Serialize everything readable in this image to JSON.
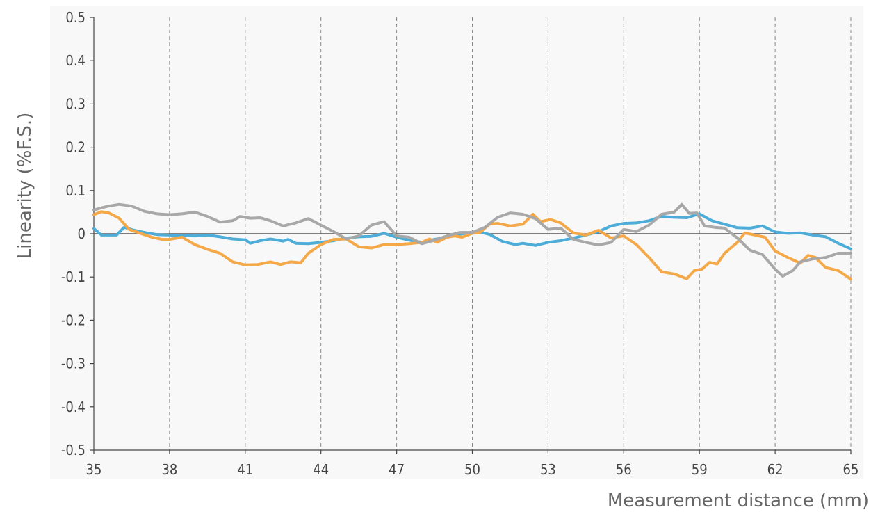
{
  "chart_data": {
    "type": "line",
    "xlabel": "Measurement distance (mm)",
    "ylabel": "Linearity (%F.S.)",
    "xlim": [
      35,
      65
    ],
    "ylim": [
      -0.5,
      0.5
    ],
    "x_ticks": [
      35,
      38,
      41,
      44,
      47,
      50,
      53,
      56,
      59,
      62,
      65
    ],
    "y_ticks": [
      0.5,
      0.4,
      0.3,
      0.2,
      0.1,
      0,
      -0.1,
      -0.2,
      -0.3,
      -0.4,
      -0.5
    ],
    "x_tick_labels": [
      "35",
      "38",
      "41",
      "44",
      "47",
      "50",
      "53",
      "56",
      "59",
      "62",
      "65"
    ],
    "y_tick_labels": [
      "0.5",
      "0.4",
      "0.3",
      "0.2",
      "0.1",
      "0",
      "-0.1",
      "-0.2",
      "-0.3",
      "-0.4",
      "-0.5"
    ],
    "grid": "vertical dashed",
    "background_color": "#f8f8f8",
    "series": [
      {
        "color": "#4eadd8",
        "points": [
          [
            35,
            0.012
          ],
          [
            35.3,
            -0.003
          ],
          [
            35.6,
            -0.003
          ],
          [
            35.9,
            -0.003
          ],
          [
            36.2,
            0.015
          ],
          [
            36.6,
            0.008
          ],
          [
            37,
            0.003
          ],
          [
            37.5,
            -0.002
          ],
          [
            38,
            -0.003
          ],
          [
            38.5,
            -0.004
          ],
          [
            39,
            -0.005
          ],
          [
            39.5,
            -0.003
          ],
          [
            40,
            -0.007
          ],
          [
            40.5,
            -0.012
          ],
          [
            41,
            -0.014
          ],
          [
            41.2,
            -0.022
          ],
          [
            41.6,
            -0.016
          ],
          [
            42,
            -0.012
          ],
          [
            42.5,
            -0.017
          ],
          [
            42.7,
            -0.013
          ],
          [
            43,
            -0.022
          ],
          [
            43.5,
            -0.023
          ],
          [
            44,
            -0.02
          ],
          [
            44.5,
            -0.016
          ],
          [
            45,
            -0.01
          ],
          [
            45.5,
            -0.007
          ],
          [
            46,
            -0.006
          ],
          [
            46.5,
            0.001
          ],
          [
            47,
            -0.008
          ],
          [
            47.5,
            -0.015
          ],
          [
            48,
            -0.02
          ],
          [
            48.5,
            -0.013
          ],
          [
            49,
            -0.008
          ],
          [
            49.5,
            -0.001
          ],
          [
            50,
            0.003
          ],
          [
            50.3,
            0.004
          ],
          [
            50.7,
            -0.002
          ],
          [
            51.2,
            -0.018
          ],
          [
            51.7,
            -0.025
          ],
          [
            52,
            -0.022
          ],
          [
            52.5,
            -0.027
          ],
          [
            53,
            -0.02
          ],
          [
            53.5,
            -0.016
          ],
          [
            54,
            -0.01
          ],
          [
            54.5,
            -0.003
          ],
          [
            55,
            0.005
          ],
          [
            55.5,
            0.018
          ],
          [
            56,
            0.024
          ],
          [
            56.5,
            0.025
          ],
          [
            57,
            0.03
          ],
          [
            57.5,
            0.04
          ],
          [
            58,
            0.038
          ],
          [
            58.5,
            0.037
          ],
          [
            59,
            0.046
          ],
          [
            59.5,
            0.03
          ],
          [
            60,
            0.022
          ],
          [
            60.5,
            0.014
          ],
          [
            61,
            0.013
          ],
          [
            61.5,
            0.018
          ],
          [
            62,
            0.004
          ],
          [
            62.5,
            0.001
          ],
          [
            63,
            0.002
          ],
          [
            63.5,
            -0.003
          ],
          [
            64,
            -0.007
          ],
          [
            64.5,
            -0.022
          ],
          [
            65,
            -0.035
          ]
        ]
      },
      {
        "color": "#f4a848",
        "points": [
          [
            35,
            0.044
          ],
          [
            35.3,
            0.051
          ],
          [
            35.6,
            0.048
          ],
          [
            36,
            0.036
          ],
          [
            36.4,
            0.01
          ],
          [
            36.8,
            0.002
          ],
          [
            37.3,
            -0.008
          ],
          [
            37.7,
            -0.013
          ],
          [
            38,
            -0.013
          ],
          [
            38.5,
            -0.008
          ],
          [
            39,
            -0.025
          ],
          [
            39.5,
            -0.036
          ],
          [
            40,
            -0.045
          ],
          [
            40.5,
            -0.065
          ],
          [
            41,
            -0.072
          ],
          [
            41.5,
            -0.071
          ],
          [
            42,
            -0.065
          ],
          [
            42.4,
            -0.071
          ],
          [
            42.8,
            -0.065
          ],
          [
            43.2,
            -0.067
          ],
          [
            43.5,
            -0.045
          ],
          [
            44,
            -0.025
          ],
          [
            44.5,
            -0.013
          ],
          [
            45,
            -0.012
          ],
          [
            45.5,
            -0.03
          ],
          [
            46,
            -0.033
          ],
          [
            46.5,
            -0.025
          ],
          [
            47,
            -0.025
          ],
          [
            47.5,
            -0.023
          ],
          [
            48,
            -0.02
          ],
          [
            48.3,
            -0.012
          ],
          [
            48.6,
            -0.02
          ],
          [
            49,
            -0.008
          ],
          [
            49.3,
            -0.005
          ],
          [
            49.6,
            -0.008
          ],
          [
            50,
            0.001
          ],
          [
            50.3,
            0.003
          ],
          [
            50.7,
            0.023
          ],
          [
            51,
            0.024
          ],
          [
            51.5,
            0.018
          ],
          [
            52,
            0.022
          ],
          [
            52.4,
            0.045
          ],
          [
            52.7,
            0.028
          ],
          [
            53.1,
            0.033
          ],
          [
            53.5,
            0.025
          ],
          [
            54,
            0.002
          ],
          [
            54.5,
            -0.003
          ],
          [
            55,
            0.008
          ],
          [
            55.5,
            -0.01
          ],
          [
            56,
            -0.005
          ],
          [
            56.5,
            -0.025
          ],
          [
            57,
            -0.055
          ],
          [
            57.5,
            -0.088
          ],
          [
            58,
            -0.093
          ],
          [
            58.5,
            -0.104
          ],
          [
            58.8,
            -0.085
          ],
          [
            59.1,
            -0.082
          ],
          [
            59.4,
            -0.066
          ],
          [
            59.7,
            -0.07
          ],
          [
            60,
            -0.045
          ],
          [
            60.5,
            -0.02
          ],
          [
            60.8,
            0.002
          ],
          [
            61.2,
            -0.003
          ],
          [
            61.6,
            -0.008
          ],
          [
            62,
            -0.04
          ],
          [
            62.5,
            -0.055
          ],
          [
            63,
            -0.068
          ],
          [
            63.3,
            -0.05
          ],
          [
            63.6,
            -0.055
          ],
          [
            64,
            -0.078
          ],
          [
            64.5,
            -0.085
          ],
          [
            65,
            -0.105
          ]
        ]
      },
      {
        "color": "#a8a8a8",
        "points": [
          [
            35,
            0.055
          ],
          [
            35.5,
            0.063
          ],
          [
            36,
            0.068
          ],
          [
            36.5,
            0.064
          ],
          [
            37,
            0.052
          ],
          [
            37.5,
            0.046
          ],
          [
            38,
            0.044
          ],
          [
            38.5,
            0.046
          ],
          [
            39,
            0.05
          ],
          [
            39.5,
            0.04
          ],
          [
            40,
            0.027
          ],
          [
            40.5,
            0.03
          ],
          [
            40.8,
            0.04
          ],
          [
            41.2,
            0.036
          ],
          [
            41.6,
            0.037
          ],
          [
            42,
            0.03
          ],
          [
            42.5,
            0.018
          ],
          [
            43,
            0.025
          ],
          [
            43.5,
            0.035
          ],
          [
            44,
            0.02
          ],
          [
            44.5,
            0.005
          ],
          [
            45,
            -0.012
          ],
          [
            45.5,
            -0.005
          ],
          [
            46,
            0.02
          ],
          [
            46.5,
            0.028
          ],
          [
            47,
            -0.005
          ],
          [
            47.5,
            -0.008
          ],
          [
            48,
            -0.023
          ],
          [
            48.5,
            -0.015
          ],
          [
            49,
            -0.005
          ],
          [
            49.5,
            0.003
          ],
          [
            50,
            0.003
          ],
          [
            50.5,
            0.015
          ],
          [
            51,
            0.038
          ],
          [
            51.5,
            0.048
          ],
          [
            52,
            0.045
          ],
          [
            52.5,
            0.035
          ],
          [
            53,
            0.01
          ],
          [
            53.5,
            0.013
          ],
          [
            54,
            -0.013
          ],
          [
            54.5,
            -0.02
          ],
          [
            55,
            -0.026
          ],
          [
            55.5,
            -0.02
          ],
          [
            56,
            0.01
          ],
          [
            56.5,
            0.005
          ],
          [
            57,
            0.02
          ],
          [
            57.5,
            0.045
          ],
          [
            58,
            0.05
          ],
          [
            58.3,
            0.068
          ],
          [
            58.6,
            0.047
          ],
          [
            58.9,
            0.048
          ],
          [
            59.2,
            0.018
          ],
          [
            59.6,
            0.015
          ],
          [
            60,
            0.013
          ],
          [
            60.5,
            -0.01
          ],
          [
            61,
            -0.038
          ],
          [
            61.5,
            -0.048
          ],
          [
            62,
            -0.082
          ],
          [
            62.3,
            -0.098
          ],
          [
            62.7,
            -0.085
          ],
          [
            63,
            -0.065
          ],
          [
            63.5,
            -0.058
          ],
          [
            64,
            -0.055
          ],
          [
            64.5,
            -0.045
          ],
          [
            65,
            -0.045
          ]
        ]
      }
    ]
  }
}
